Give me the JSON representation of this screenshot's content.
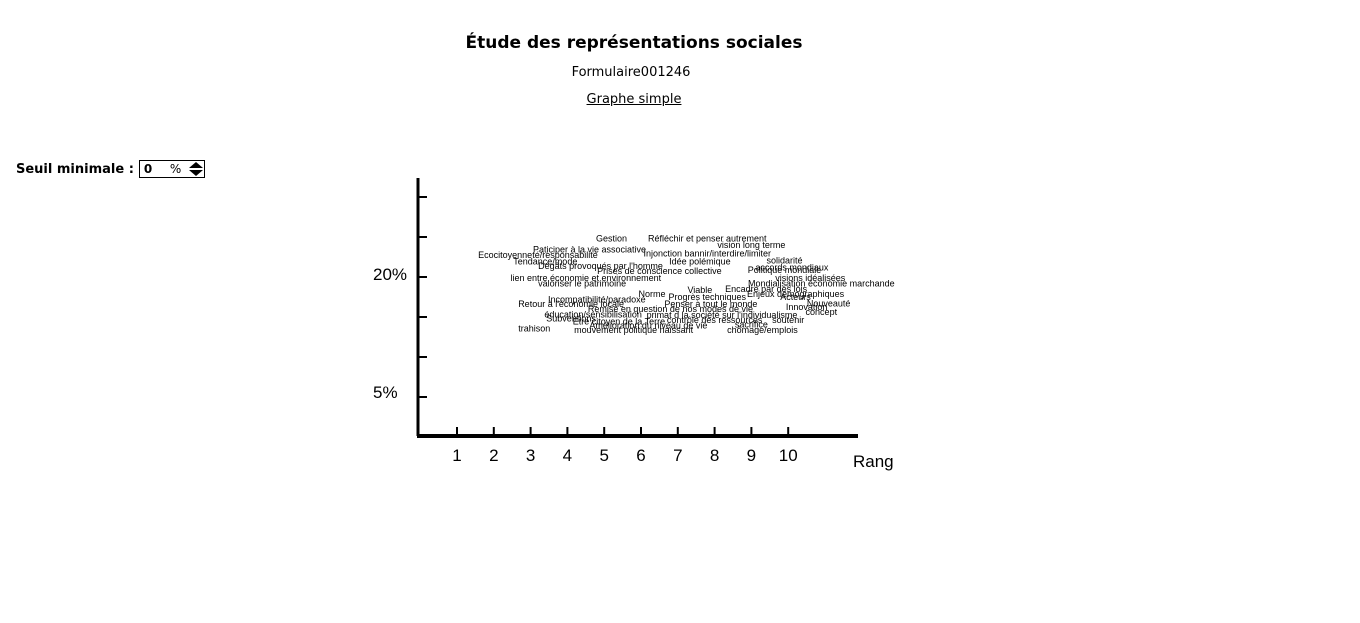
{
  "header": {
    "title": "Étude des représentations sociales",
    "form_id": "Formulaire001246",
    "graph_link": "Graphe simple"
  },
  "seuil": {
    "label": "Seuil minimale :",
    "value": "0",
    "unit": "%"
  },
  "chart_data": {
    "type": "scatter",
    "xlabel": "Rang",
    "x_ticks": [
      "1",
      "2",
      "3",
      "4",
      "5",
      "6",
      "7",
      "8",
      "9",
      "10"
    ],
    "y_tick_labels": [
      "20%",
      "5%"
    ],
    "words": [
      {
        "label": "Gestion",
        "x": 5.2,
        "y": 25.0
      },
      {
        "label": "Réfléchir et penser autrement",
        "x": 7.8,
        "y": 25.0
      },
      {
        "label": "vision long terme",
        "x": 9.0,
        "y": 24.2
      },
      {
        "label": "Paticiper à la vie associative",
        "x": 4.6,
        "y": 23.6
      },
      {
        "label": "Injonction bannir/interdire/limiter",
        "x": 7.8,
        "y": 23.1
      },
      {
        "label": "Ecocitoyenneté/responsabilité",
        "x": 3.2,
        "y": 22.9
      },
      {
        "label": "Tendance/mode",
        "x": 3.4,
        "y": 22.1
      },
      {
        "label": "Idée polémique",
        "x": 7.6,
        "y": 22.1
      },
      {
        "label": "solidarité",
        "x": 9.9,
        "y": 22.2
      },
      {
        "label": "Dégâts provoqués par l'homme",
        "x": 4.9,
        "y": 21.5
      },
      {
        "label": "accords mondiaux",
        "x": 10.1,
        "y": 21.3
      },
      {
        "label": "Prises de conscience collective",
        "x": 6.5,
        "y": 20.9
      },
      {
        "label": "Politique mondiale",
        "x": 9.9,
        "y": 21.0
      },
      {
        "label": "lien entre économie et environnement",
        "x": 4.5,
        "y": 20.0
      },
      {
        "label": "visions idéalisées",
        "x": 10.6,
        "y": 20.0
      },
      {
        "label": "valoriser le patrimoine",
        "x": 4.4,
        "y": 19.3
      },
      {
        "label": "Mondialisation économie marchande",
        "x": 10.9,
        "y": 19.3
      },
      {
        "label": "Viable",
        "x": 7.6,
        "y": 18.5
      },
      {
        "label": "Encadré par des lois",
        "x": 9.4,
        "y": 18.6
      },
      {
        "label": "Norme",
        "x": 6.3,
        "y": 18.0
      },
      {
        "label": "Enjeux  démographiques",
        "x": 10.2,
        "y": 18.0
      },
      {
        "label": "Progrès techniques",
        "x": 7.8,
        "y": 17.6
      },
      {
        "label": "Acteurs",
        "x": 10.2,
        "y": 17.6
      },
      {
        "label": "Incompatibilité/paradoxe",
        "x": 4.8,
        "y": 17.3
      },
      {
        "label": "Retour à l'économie locale",
        "x": 4.1,
        "y": 16.7
      },
      {
        "label": "Penser à tout le monde",
        "x": 7.9,
        "y": 16.7
      },
      {
        "label": "Nouveauté",
        "x": 11.1,
        "y": 16.8
      },
      {
        "label": "Innovation",
        "x": 10.5,
        "y": 16.3
      },
      {
        "label": "Remise en question de nos modes de vie",
        "x": 6.8,
        "y": 16.1
      },
      {
        "label": "concept",
        "x": 10.9,
        "y": 15.7
      },
      {
        "label": "éducation/sensibilisation",
        "x": 4.7,
        "y": 15.4
      },
      {
        "label": "primat d la société sur l'individualisme",
        "x": 8.2,
        "y": 15.3
      },
      {
        "label": "Subventions",
        "x": 4.1,
        "y": 14.9
      },
      {
        "label": "Etre citoyen de la Terre",
        "x": 5.4,
        "y": 14.5
      },
      {
        "label": "contrôle des ressources",
        "x": 8.0,
        "y": 14.7
      },
      {
        "label": "soutenir",
        "x": 10.0,
        "y": 14.7
      },
      {
        "label": "Amélioration du niveau de vie",
        "x": 6.2,
        "y": 14.0
      },
      {
        "label": "sacrifice",
        "x": 9.0,
        "y": 14.1
      },
      {
        "label": "trahison",
        "x": 3.1,
        "y": 13.6
      },
      {
        "label": "mouvement politique naissant",
        "x": 5.8,
        "y": 13.4
      },
      {
        "label": "chômage/emplois",
        "x": 9.3,
        "y": 13.4
      }
    ]
  }
}
